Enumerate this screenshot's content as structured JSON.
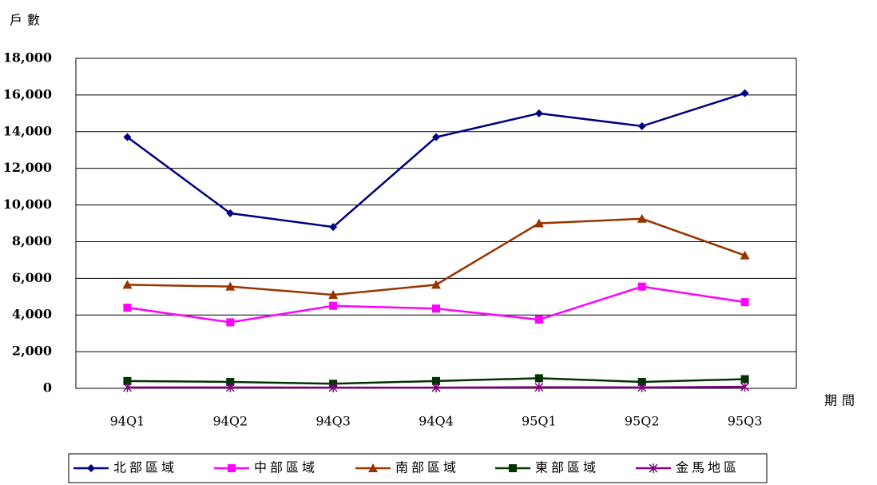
{
  "chart_data": {
    "type": "line",
    "y_label": "戶數",
    "x_label": "期間",
    "categories": [
      "94Q1",
      "94Q2",
      "94Q3",
      "94Q4",
      "95Q1",
      "95Q2",
      "95Q3"
    ],
    "series": [
      {
        "name": "北部區域",
        "color": "#000080",
        "marker": "diamond",
        "values": [
          13700,
          9550,
          8800,
          13700,
          15000,
          14300,
          16100
        ]
      },
      {
        "name": "中部區域",
        "color": "#ff00ff",
        "marker": "square",
        "values": [
          4400,
          3600,
          4500,
          4350,
          3750,
          5550,
          4700
        ]
      },
      {
        "name": "南部區域",
        "color": "#993300",
        "marker": "triangle",
        "values": [
          5650,
          5550,
          5100,
          5650,
          9000,
          9250,
          7250
        ]
      },
      {
        "name": "東部區域",
        "color": "#003300",
        "marker": "square",
        "values": [
          400,
          350,
          250,
          400,
          550,
          350,
          500
        ]
      },
      {
        "name": "金馬地區",
        "color": "#800080",
        "marker": "asterisk",
        "values": [
          50,
          50,
          40,
          40,
          60,
          50,
          80
        ]
      }
    ],
    "ylim": [
      0,
      18000
    ],
    "yticks": [
      0,
      {
        "value": 2000,
        "label": "2,000"
      },
      {
        "value": 4000,
        "label": "4,000"
      },
      {
        "value": 6000,
        "label": "6,000"
      },
      {
        "value": 8000,
        "label": "8,000"
      },
      {
        "value": 10000,
        "label": "10,000"
      },
      {
        "value": 12000,
        "label": "12,000"
      },
      {
        "value": 14000,
        "label": "14,000"
      },
      {
        "value": 16000,
        "label": "16,000"
      },
      {
        "value": 18000,
        "label": "18,000"
      }
    ],
    "grid": true,
    "legend": "bottom"
  }
}
